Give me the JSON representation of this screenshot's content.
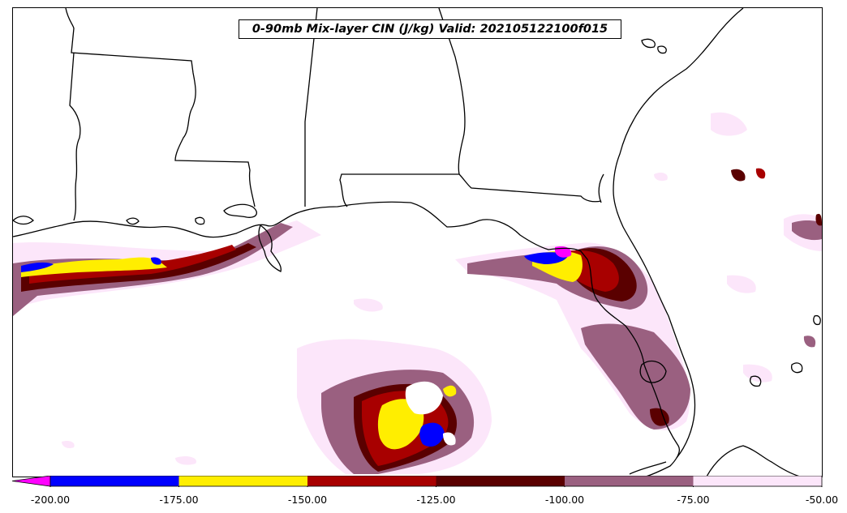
{
  "title": "0-90mb Mix-layer CIN (J/kg) Valid: 202105122100f015",
  "colorbar": {
    "extend": "min",
    "under_color": "#ff00ff",
    "levels": [
      -200,
      -175,
      -150,
      -125,
      -100,
      -75,
      -50
    ],
    "colors": [
      "#0000ff",
      "#ffee00",
      "#a80000",
      "#5a0000",
      "#9a6080",
      "#fce6fa"
    ],
    "tick_labels": [
      "-200.00",
      "-175.00",
      "-150.00",
      "-125.00",
      "-100.00",
      "-75.00",
      "-50.00"
    ]
  }
}
